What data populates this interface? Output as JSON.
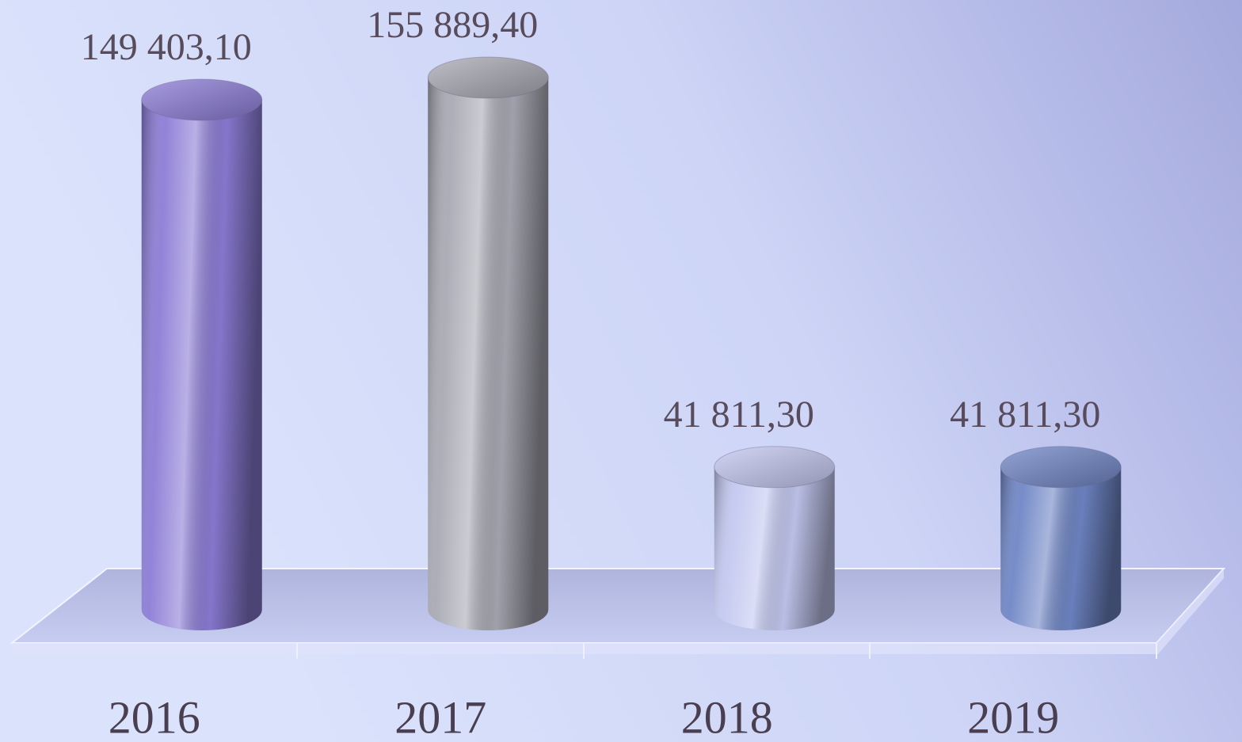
{
  "chart_data": {
    "type": "bar3d",
    "categories": [
      "2016",
      "2017",
      "2018",
      "2019"
    ],
    "values": [
      149403.1,
      155889.4,
      41811.3,
      41811.3
    ],
    "value_labels": [
      "149 403,10",
      "155 889,40",
      "41 811,30",
      "41 811,30"
    ],
    "colors": [
      "#8c7cd6",
      "#a9a9b4",
      "#c3c8f0",
      "#6f86c6"
    ]
  }
}
